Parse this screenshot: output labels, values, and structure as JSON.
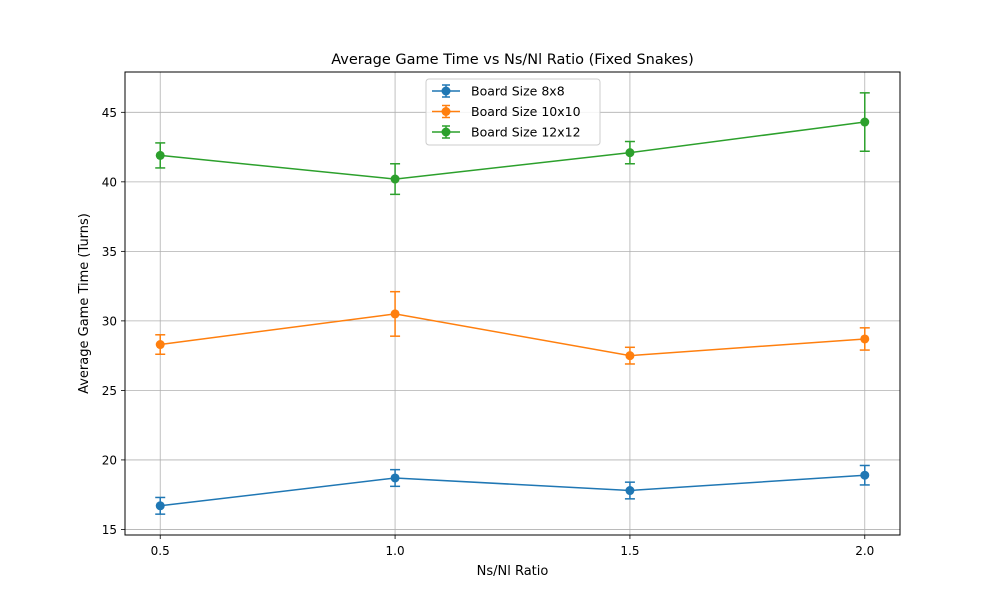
{
  "chart_data": {
    "type": "line",
    "title": "Average Game Time vs Ns/Nl Ratio (Fixed Snakes)",
    "xlabel": "Ns/Nl Ratio",
    "ylabel": "Average Game Time (Turns)",
    "x": [
      0.5,
      1.0,
      1.5,
      2.0
    ],
    "x_tick_labels": [
      "0.5",
      "1.0",
      "1.5",
      "2.0"
    ],
    "y_ticks": [
      15,
      20,
      25,
      30,
      35,
      40,
      45
    ],
    "y_tick_labels": [
      "15",
      "20",
      "25",
      "30",
      "35",
      "40",
      "45"
    ],
    "xlim": [
      0.425,
      2.075
    ],
    "ylim": [
      14.6,
      47.9
    ],
    "grid": true,
    "legend_position": "top-center",
    "series": [
      {
        "name": "Board Size 8x8",
        "color": "#1f77b4",
        "values": [
          16.7,
          18.7,
          17.8,
          18.9
        ],
        "errors": [
          0.6,
          0.6,
          0.6,
          0.7
        ]
      },
      {
        "name": "Board Size 10x10",
        "color": "#ff7f0e",
        "values": [
          28.3,
          30.5,
          27.5,
          28.7
        ],
        "errors": [
          0.7,
          1.6,
          0.6,
          0.8
        ]
      },
      {
        "name": "Board Size 12x12",
        "color": "#2ca02c",
        "values": [
          41.9,
          40.2,
          42.1,
          44.3
        ],
        "errors": [
          0.9,
          1.1,
          0.8,
          2.1
        ]
      }
    ]
  }
}
